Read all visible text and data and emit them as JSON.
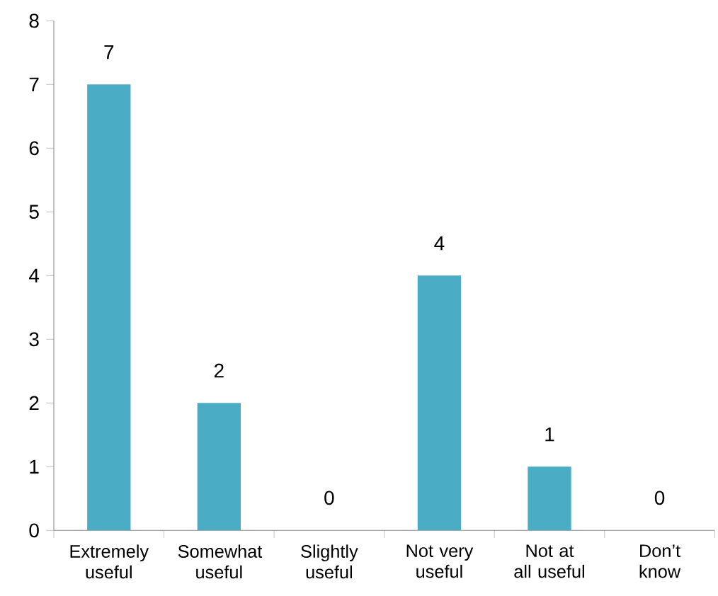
{
  "chart_data": {
    "type": "bar",
    "categories": [
      "Extremely useful",
      "Somewhat useful",
      "Slightly useful",
      "Not very useful",
      "Not at all useful",
      "Don’t know"
    ],
    "values": [
      7,
      2,
      0,
      4,
      1,
      0
    ],
    "color": "#4bacc6",
    "ylim": [
      0,
      8
    ],
    "yticks": [
      0,
      1,
      2,
      3,
      4,
      5,
      6,
      7,
      8
    ],
    "data_labels": true
  }
}
